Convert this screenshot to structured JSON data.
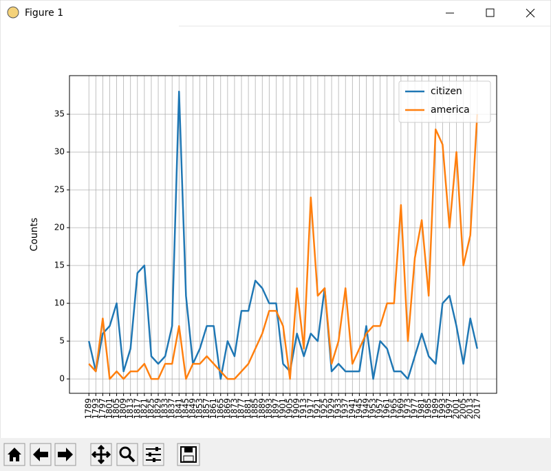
{
  "window": {
    "title": "Figure 1"
  },
  "chart_data": {
    "type": "line",
    "ylabel": "Counts",
    "categories": [
      1789,
      1793,
      1797,
      1801,
      1805,
      1809,
      1813,
      1817,
      1821,
      1825,
      1829,
      1833,
      1837,
      1841,
      1845,
      1849,
      1853,
      1857,
      1861,
      1865,
      1869,
      1873,
      1877,
      1881,
      1885,
      1889,
      1893,
      1897,
      1901,
      1905,
      1909,
      1913,
      1917,
      1921,
      1925,
      1929,
      1933,
      1937,
      1941,
      1945,
      1949,
      1953,
      1957,
      1961,
      1965,
      1969,
      1973,
      1977,
      1981,
      1985,
      1989,
      1993,
      1997,
      2001,
      2005,
      2013,
      2017
    ],
    "series": [
      {
        "name": "citizen",
        "color": "#1f77b4",
        "values": [
          5,
          1,
          6,
          7,
          10,
          1,
          4,
          14,
          15,
          3,
          2,
          3,
          7,
          38,
          11,
          2,
          4,
          7,
          7,
          0,
          5,
          3,
          9,
          9,
          13,
          12,
          10,
          10,
          2,
          1,
          6,
          3,
          6,
          5,
          12,
          1,
          2,
          1,
          1,
          1,
          7,
          0,
          5,
          4,
          1,
          1,
          0,
          3,
          6,
          3,
          2,
          10,
          11,
          7,
          2,
          8,
          4
        ]
      },
      {
        "name": "america",
        "color": "#ff7f0e",
        "values": [
          2,
          1,
          8,
          0,
          1,
          0,
          1,
          1,
          2,
          0,
          0,
          2,
          2,
          7,
          0,
          2,
          2,
          3,
          2,
          1,
          0,
          0,
          1,
          2,
          4,
          6,
          9,
          9,
          7,
          0,
          12,
          4,
          24,
          11,
          12,
          2,
          5,
          12,
          2,
          4,
          6,
          7,
          7,
          10,
          10,
          23,
          5,
          16,
          21,
          11,
          33,
          31,
          20,
          30,
          15,
          19,
          35
        ]
      }
    ],
    "ylim": [
      -1.9,
      40.1
    ],
    "yticks": [
      0,
      5,
      10,
      15,
      20,
      25,
      30,
      35
    ],
    "grid": true,
    "legend": "upper right"
  }
}
